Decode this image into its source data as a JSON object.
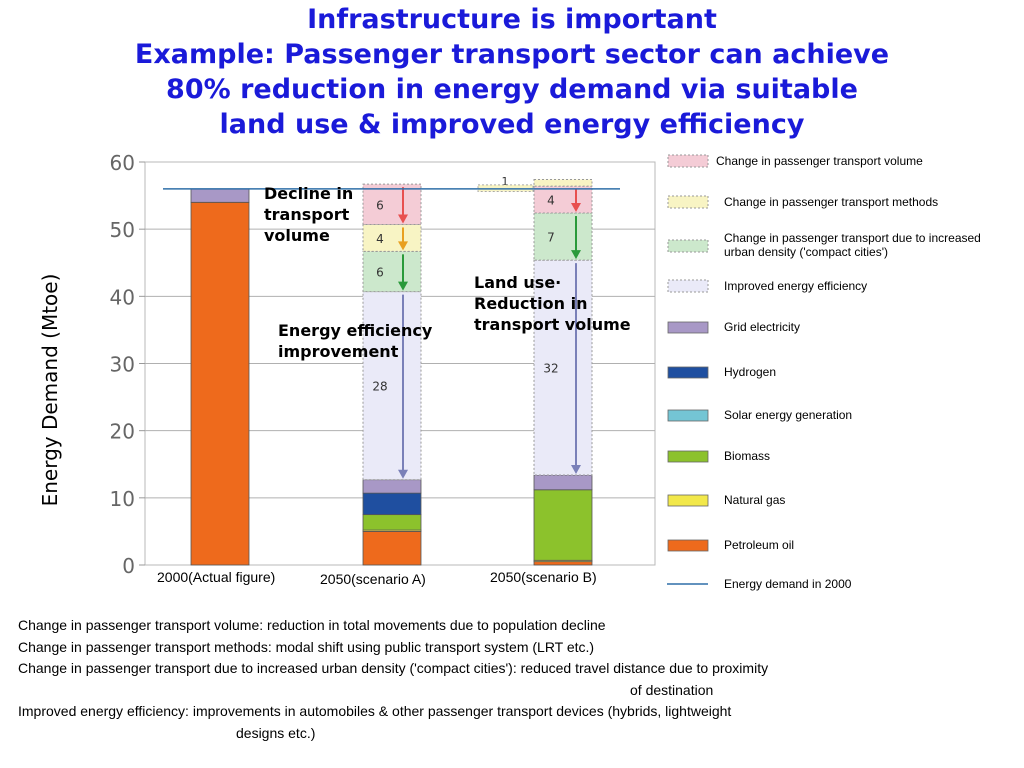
{
  "title": {
    "line1": "Infrastructure is important",
    "line2": "Example: Passenger transport sector can achieve",
    "line3": "80% reduction in energy demand via suitable",
    "line4": "land use & improved energy efficiency"
  },
  "annotations": {
    "decline": [
      "Decline in",
      "transport",
      "volume"
    ],
    "efficiency": [
      "Energy efficiency",
      "improvement"
    ],
    "land_use": [
      "Land use·",
      "Reduction in",
      "transport volume"
    ]
  },
  "notes": [
    "Change in passenger transport volume: reduction in total movements due to population decline",
    "Change in passenger transport methods: modal shift using public transport system (LRT etc.)",
    "Change in passenger transport due to increased urban density ('compact cities'): reduced travel distance due to proximity",
    "of destination",
    "Improved energy efficiency: improvements in automobiles & other passenger transport devices (hybrids, lightweight",
    "designs etc.)"
  ],
  "colors": {
    "petroleum": "#ee6a1c",
    "natural_gas": "#f2e84a",
    "biomass": "#8cc22c",
    "solar": "#74c5d4",
    "hydrogen": "#1f4fa0",
    "grid": "#a898c6",
    "vol_change": "#f4ccd6",
    "method_change": "#f8f4c4",
    "density_change": "#cce8cc",
    "efficiency": "#eaeaf8",
    "demand_line": "#2f6fa8"
  },
  "chart_data": {
    "type": "bar",
    "ylabel": "Energy Demand (Mtoe)",
    "ylim": [
      0,
      60
    ],
    "yticks": [
      "0",
      "10",
      "20",
      "30",
      "40",
      "50",
      "60"
    ],
    "grid": true,
    "categories": [
      "2000(Actual figure)",
      "2050(scenario A)",
      "2050(scenario B)"
    ],
    "energy_demand_2000": 56,
    "series": [
      {
        "name": "Petroleum oil",
        "key": "petroleum",
        "values": [
          54,
          5,
          0.5
        ]
      },
      {
        "name": "Natural gas",
        "key": "natural_gas",
        "values": [
          0,
          0.2,
          0.2
        ]
      },
      {
        "name": "Biomass",
        "key": "biomass",
        "values": [
          0,
          2.3,
          10.5
        ]
      },
      {
        "name": "Solar energy generation",
        "key": "solar",
        "values": [
          0,
          0,
          0
        ]
      },
      {
        "name": "Hydrogen",
        "key": "hydrogen",
        "values": [
          0,
          3.2,
          0
        ]
      },
      {
        "name": "Grid electricity",
        "key": "grid",
        "values": [
          2,
          2,
          2.2
        ]
      }
    ],
    "reductions": [
      {
        "bar": 1,
        "label": "28",
        "value": 28,
        "kind": "efficiency",
        "arrow": "#7a80b8"
      },
      {
        "bar": 1,
        "label": "6",
        "value": 6,
        "kind": "density_change",
        "arrow": "#2a9a3a"
      },
      {
        "bar": 1,
        "label": "4",
        "value": 4,
        "kind": "method_change",
        "arrow": "#e8a020"
      },
      {
        "bar": 1,
        "label": "6",
        "value": 6,
        "kind": "vol_change",
        "arrow": "#e85050"
      },
      {
        "bar": 2,
        "label": "32",
        "value": 32,
        "kind": "efficiency",
        "arrow": "#7a80b8"
      },
      {
        "bar": 2,
        "label": "7",
        "value": 7,
        "kind": "density_change",
        "arrow": "#2a9a3a"
      },
      {
        "bar": 2,
        "label": "4",
        "value": 4,
        "kind": "vol_change",
        "arrow": "#e85050"
      },
      {
        "bar": 2,
        "label": "1",
        "value": 1,
        "kind": "method_change",
        "arrow": "#e8a020"
      }
    ],
    "legend": [
      {
        "label": "Change in passenger transport volume",
        "kind": "vol_change",
        "style": "dotted"
      },
      {
        "label": "Change in passenger transport methods",
        "kind": "method_change",
        "style": "dotted"
      },
      {
        "label": "Change in passenger transport due to increased urban density ('compact cities')",
        "kind": "density_change",
        "style": "dotted"
      },
      {
        "label": "Improved energy efficiency",
        "kind": "efficiency",
        "style": "dotted"
      },
      {
        "label": "Grid electricity",
        "kind": "grid",
        "style": "solid"
      },
      {
        "label": "Hydrogen",
        "kind": "hydrogen",
        "style": "solid"
      },
      {
        "label": "Solar energy generation",
        "kind": "solar",
        "style": "solid"
      },
      {
        "label": "Biomass",
        "kind": "biomass",
        "style": "solid"
      },
      {
        "label": "Natural gas",
        "kind": "natural_gas",
        "style": "solid"
      },
      {
        "label": "Petroleum oil",
        "kind": "petroleum",
        "style": "solid"
      },
      {
        "label": "Energy demand in 2000",
        "kind": "demand_line",
        "style": "line"
      }
    ]
  }
}
